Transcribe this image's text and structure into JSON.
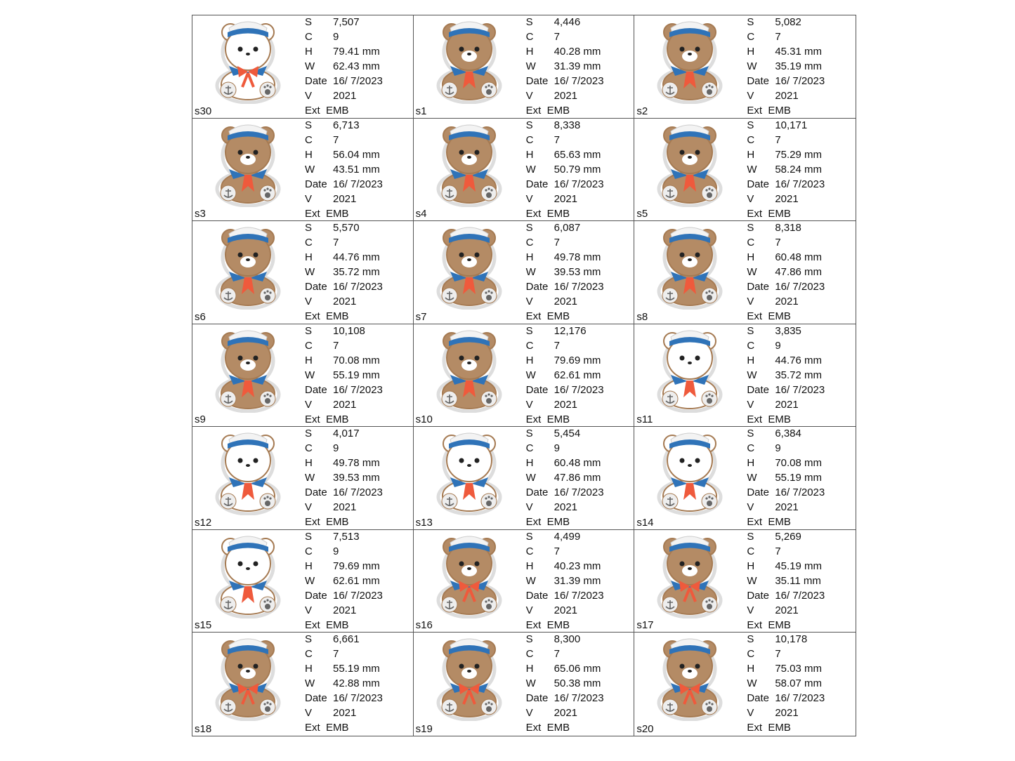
{
  "labels": {
    "s": "S",
    "c": "C",
    "h": "H",
    "w": "W",
    "date": "Date",
    "v": "V",
    "ext": "Ext"
  },
  "colors": {
    "white_bear": "#ffffff",
    "brown_bear": "#b48b65",
    "outline": "#a57a52",
    "collar": "#2f73b8",
    "scarf": "#ef5a3c",
    "border": "#555555"
  },
  "designs": [
    {
      "name": "s30",
      "s": "7,507",
      "c": "9",
      "h": "79.41 mm",
      "w": "62.43 mm",
      "date": "16/ 7/2023",
      "v": "2021",
      "ext": "EMB",
      "fill": "#ffffff",
      "bow": true
    },
    {
      "name": "s1",
      "s": "4,446",
      "c": "7",
      "h": "40.28 mm",
      "w": "31.39 mm",
      "date": "16/ 7/2023",
      "v": "2021",
      "ext": "EMB",
      "fill": "#b48b65",
      "bow": false
    },
    {
      "name": "s2",
      "s": "5,082",
      "c": "7",
      "h": "45.31 mm",
      "w": "35.19 mm",
      "date": "16/ 7/2023",
      "v": "2021",
      "ext": "EMB",
      "fill": "#b48b65",
      "bow": false
    },
    {
      "name": "s3",
      "s": "6,713",
      "c": "7",
      "h": "56.04 mm",
      "w": "43.51 mm",
      "date": "16/ 7/2023",
      "v": "2021",
      "ext": "EMB",
      "fill": "#b48b65",
      "bow": false
    },
    {
      "name": "s4",
      "s": "8,338",
      "c": "7",
      "h": "65.63 mm",
      "w": "50.79 mm",
      "date": "16/ 7/2023",
      "v": "2021",
      "ext": "EMB",
      "fill": "#b48b65",
      "bow": false
    },
    {
      "name": "s5",
      "s": "10,171",
      "c": "7",
      "h": "75.29 mm",
      "w": "58.24 mm",
      "date": "16/ 7/2023",
      "v": "2021",
      "ext": "EMB",
      "fill": "#b48b65",
      "bow": false
    },
    {
      "name": "s6",
      "s": "5,570",
      "c": "7",
      "h": "44.76 mm",
      "w": "35.72 mm",
      "date": "16/ 7/2023",
      "v": "2021",
      "ext": "EMB",
      "fill": "#b48b65",
      "bow": false
    },
    {
      "name": "s7",
      "s": "6,087",
      "c": "7",
      "h": "49.78 mm",
      "w": "39.53 mm",
      "date": "16/ 7/2023",
      "v": "2021",
      "ext": "EMB",
      "fill": "#b48b65",
      "bow": false
    },
    {
      "name": "s8",
      "s": "8,318",
      "c": "7",
      "h": "60.48 mm",
      "w": "47.86 mm",
      "date": "16/ 7/2023",
      "v": "2021",
      "ext": "EMB",
      "fill": "#b48b65",
      "bow": false
    },
    {
      "name": "s9",
      "s": "10,108",
      "c": "7",
      "h": "70.08 mm",
      "w": "55.19 mm",
      "date": "16/ 7/2023",
      "v": "2021",
      "ext": "EMB",
      "fill": "#b48b65",
      "bow": false
    },
    {
      "name": "s10",
      "s": "12,176",
      "c": "7",
      "h": "79.69 mm",
      "w": "62.61 mm",
      "date": "16/ 7/2023",
      "v": "2021",
      "ext": "EMB",
      "fill": "#b48b65",
      "bow": false
    },
    {
      "name": "s11",
      "s": "3,835",
      "c": "9",
      "h": "44.76 mm",
      "w": "35.72 mm",
      "date": "16/ 7/2023",
      "v": "2021",
      "ext": "EMB",
      "fill": "#ffffff",
      "bow": false
    },
    {
      "name": "s12",
      "s": "4,017",
      "c": "9",
      "h": "49.78 mm",
      "w": "39.53 mm",
      "date": "16/ 7/2023",
      "v": "2021",
      "ext": "EMB",
      "fill": "#ffffff",
      "bow": false
    },
    {
      "name": "s13",
      "s": "5,454",
      "c": "9",
      "h": "60.48 mm",
      "w": "47.86 mm",
      "date": "16/ 7/2023",
      "v": "2021",
      "ext": "EMB",
      "fill": "#ffffff",
      "bow": false
    },
    {
      "name": "s14",
      "s": "6,384",
      "c": "9",
      "h": "70.08 mm",
      "w": "55.19 mm",
      "date": "16/ 7/2023",
      "v": "2021",
      "ext": "EMB",
      "fill": "#ffffff",
      "bow": false
    },
    {
      "name": "s15",
      "s": "7,513",
      "c": "9",
      "h": "79.69 mm",
      "w": "62.61 mm",
      "date": "16/ 7/2023",
      "v": "2021",
      "ext": "EMB",
      "fill": "#ffffff",
      "bow": false
    },
    {
      "name": "s16",
      "s": "4,499",
      "c": "7",
      "h": "40.23 mm",
      "w": "31.39 mm",
      "date": "16/ 7/2023",
      "v": "2021",
      "ext": "EMB",
      "fill": "#b48b65",
      "bow": true
    },
    {
      "name": "s17",
      "s": "5,269",
      "c": "7",
      "h": "45.19 mm",
      "w": "35.11 mm",
      "date": "16/ 7/2023",
      "v": "2021",
      "ext": "EMB",
      "fill": "#b48b65",
      "bow": true
    },
    {
      "name": "s18",
      "s": "6,661",
      "c": "7",
      "h": "55.19 mm",
      "w": "42.88 mm",
      "date": "16/ 7/2023",
      "v": "2021",
      "ext": "EMB",
      "fill": "#b48b65",
      "bow": true
    },
    {
      "name": "s19",
      "s": "8,300",
      "c": "7",
      "h": "65.06 mm",
      "w": "50.38 mm",
      "date": "16/ 7/2023",
      "v": "2021",
      "ext": "EMB",
      "fill": "#b48b65",
      "bow": true
    },
    {
      "name": "s20",
      "s": "10,178",
      "c": "7",
      "h": "75.03 mm",
      "w": "58.07 mm",
      "date": "16/ 7/2023",
      "v": "2021",
      "ext": "EMB",
      "fill": "#b48b65",
      "bow": true
    }
  ]
}
